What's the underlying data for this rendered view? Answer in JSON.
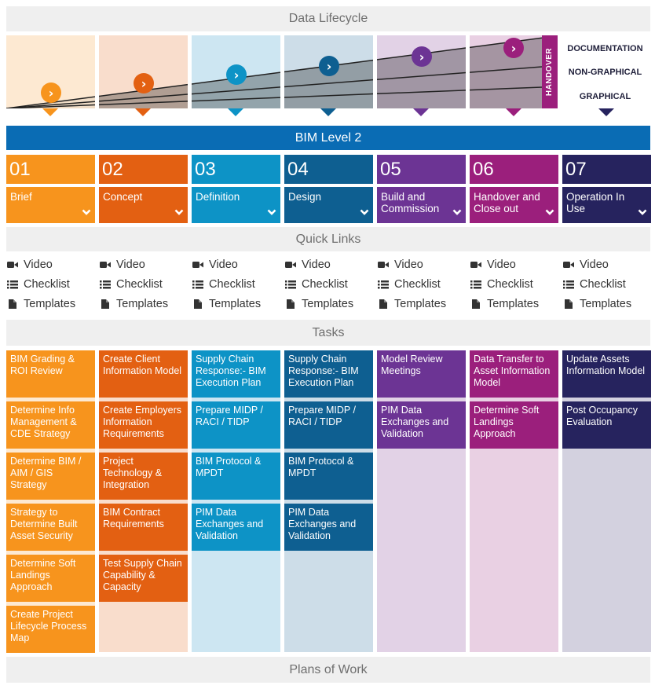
{
  "sections": {
    "data_lifecycle": "Data Lifecycle",
    "quick_links": "Quick Links",
    "tasks": "Tasks",
    "plans_of_work": "Plans of Work"
  },
  "lifecycle": {
    "handover_label": "HANDOVER",
    "legend": [
      "DOCUMENTATION",
      "NON-GRAPHICAL",
      "GRAPHICAL"
    ],
    "arrow_glyph": "›"
  },
  "bim_level": "BIM Level 2",
  "colors": {
    "stage": [
      "#f7941d",
      "#e36012",
      "#0d93c6",
      "#0e5f91",
      "#6c3494",
      "#9b1f7c",
      "#26235e"
    ],
    "panel": [
      "#fde9d2",
      "#f9ddcc",
      "#cde6f2",
      "#cddde8",
      "#e2d2e6",
      "#e9d0e3",
      "#d3d1df"
    ],
    "bim_bar": "#0a6cb4",
    "handover": "#9b1f7c"
  },
  "stages": [
    {
      "num": "01",
      "label": "Brief"
    },
    {
      "num": "02",
      "label": "Concept"
    },
    {
      "num": "03",
      "label": "Definition"
    },
    {
      "num": "04",
      "label": "Design"
    },
    {
      "num": "05",
      "label": "Build and Commission"
    },
    {
      "num": "06",
      "label": "Handover and Close out"
    },
    {
      "num": "07",
      "label": "Operation In Use"
    }
  ],
  "quick_links": [
    {
      "icon": "video-camera-icon",
      "label": "Video"
    },
    {
      "icon": "checklist-icon",
      "label": "Checklist"
    },
    {
      "icon": "document-icon",
      "label": "Templates"
    }
  ],
  "tasks": [
    [
      "BIM Grading & ROI Review",
      "Determine Info Management & CDE Strategy",
      "Determine BIM / AIM / GIS Strategy",
      "Strategy to Determine Built Asset Security",
      "Determine Soft Landings Approach",
      "Create Project Lifecycle Process Map"
    ],
    [
      "Create Client Information Model",
      "Create Employers Information Requirements",
      "Project Technology & Integration",
      "BIM Contract Requirements",
      "Test Supply Chain Capability & Capacity"
    ],
    [
      "Supply Chain Response:- BIM Execution Plan",
      "Prepare MIDP / RACI / TIDP",
      "BIM Protocol & MPDT",
      "PIM Data Exchanges and Validation"
    ],
    [
      "Supply Chain Response:- BIM Execution Plan",
      "Prepare MIDP / RACI / TIDP",
      "BIM Protocol & MPDT",
      "PIM Data Exchanges and Validation"
    ],
    [
      "Model Review Meetings",
      "PIM Data Exchanges and Validation"
    ],
    [
      "Data Transfer to Asset Information Model",
      "Determine Soft Landings Approach"
    ],
    [
      "Update Assets Information Model",
      "Post Occupancy Evaluation"
    ]
  ]
}
